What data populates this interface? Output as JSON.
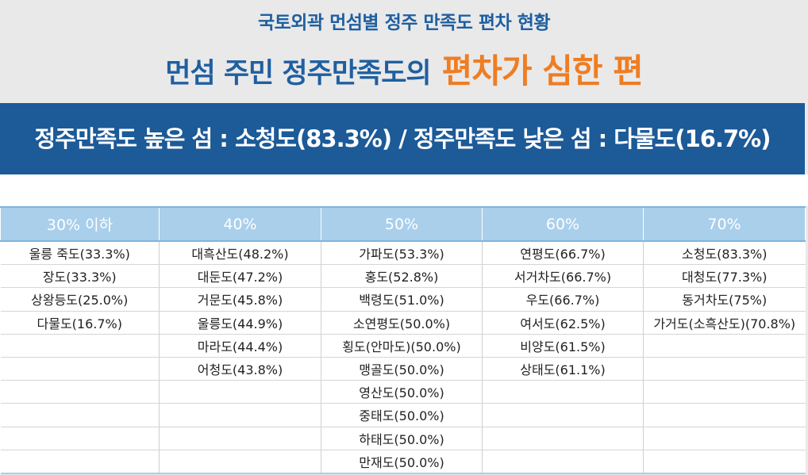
{
  "header": {
    "subtitle": "국토외곽 먼섬별 정주 만족도 편차 현황",
    "title_main": "먼섬 주민 정주만족도의",
    "title_accent": "편차가 심한 편"
  },
  "banner": {
    "text": "정주만족도 높은 섬 : 소청도(83.3%) / 정주만족도 낮은 섬 : 다물도(16.7%)"
  },
  "table": {
    "headers": [
      "30% 이하",
      "40%",
      "50%",
      "60%",
      "70%"
    ],
    "rows": [
      [
        "울릉 죽도(33.3%)",
        "대흑산도(48.2%)",
        "가파도(53.3%)",
        "연평도(66.7%)",
        "소청도(83.3%)"
      ],
      [
        "장도(33.3%)",
        "대둔도(47.2%)",
        "홍도(52.8%)",
        "서거차도(66.7%)",
        "대청도(77.3%)"
      ],
      [
        "상왕등도(25.0%)",
        "거문도(45.8%)",
        "백령도(51.0%)",
        "우도(66.7%)",
        "동거차도(75%)"
      ],
      [
        "다물도(16.7%)",
        "울릉도(44.9%)",
        "소연평도(50.0%)",
        "여서도(62.5%)",
        "가거도(소흑산도)(70.8%)"
      ],
      [
        "",
        "마라도(44.4%)",
        "횡도(안마도)(50.0%)",
        "비양도(61.5%)",
        ""
      ],
      [
        "",
        "어청도(43.8%)",
        "맹골도(50.0%)",
        "상태도(61.1%)",
        ""
      ],
      [
        "",
        "",
        "영산도(50.0%)",
        "",
        ""
      ],
      [
        "",
        "",
        "중태도(50.0%)",
        "",
        ""
      ],
      [
        "",
        "",
        "하태도(50.0%)",
        "",
        ""
      ],
      [
        "",
        "",
        "만재도(50.0%)",
        "",
        ""
      ]
    ]
  },
  "colors": {
    "title_blue": "#1f5fa0",
    "accent_orange": "#ef7d22",
    "banner_blue": "#1c5a98",
    "header_light_blue": "#a9cfeb"
  }
}
